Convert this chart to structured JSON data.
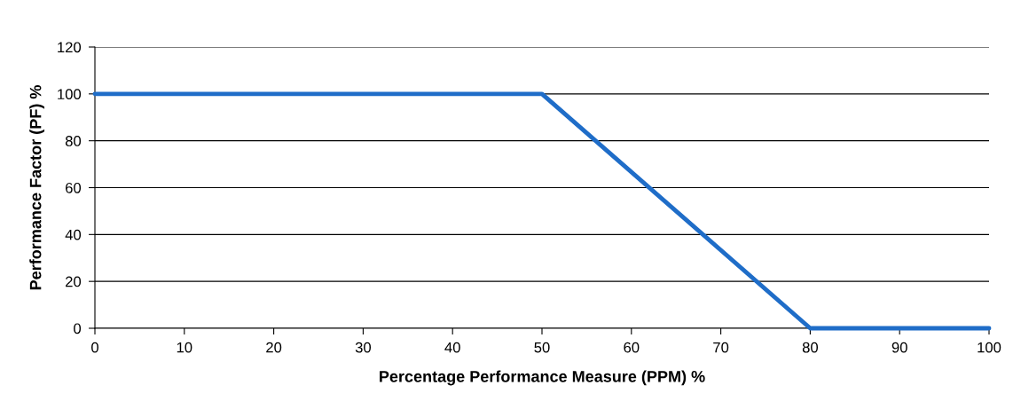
{
  "chart_data": {
    "type": "line",
    "xlabel": "Percentage Performance Measure (PPM) %",
    "ylabel": "Performance Factor (PF) %",
    "x": [
      0,
      50,
      80,
      100
    ],
    "series": [
      {
        "color": "#1f6dc8",
        "values": [
          100,
          100,
          0,
          0
        ]
      }
    ],
    "xlim": [
      0,
      100
    ],
    "xticks": [
      0,
      10,
      20,
      30,
      40,
      50,
      60,
      70,
      80,
      90,
      100
    ],
    "ylim": [
      0,
      120
    ],
    "yticks": [
      0,
      20,
      40,
      60,
      80,
      100,
      120
    ],
    "grid": "y",
    "marker": "none",
    "line_style": "solid"
  }
}
